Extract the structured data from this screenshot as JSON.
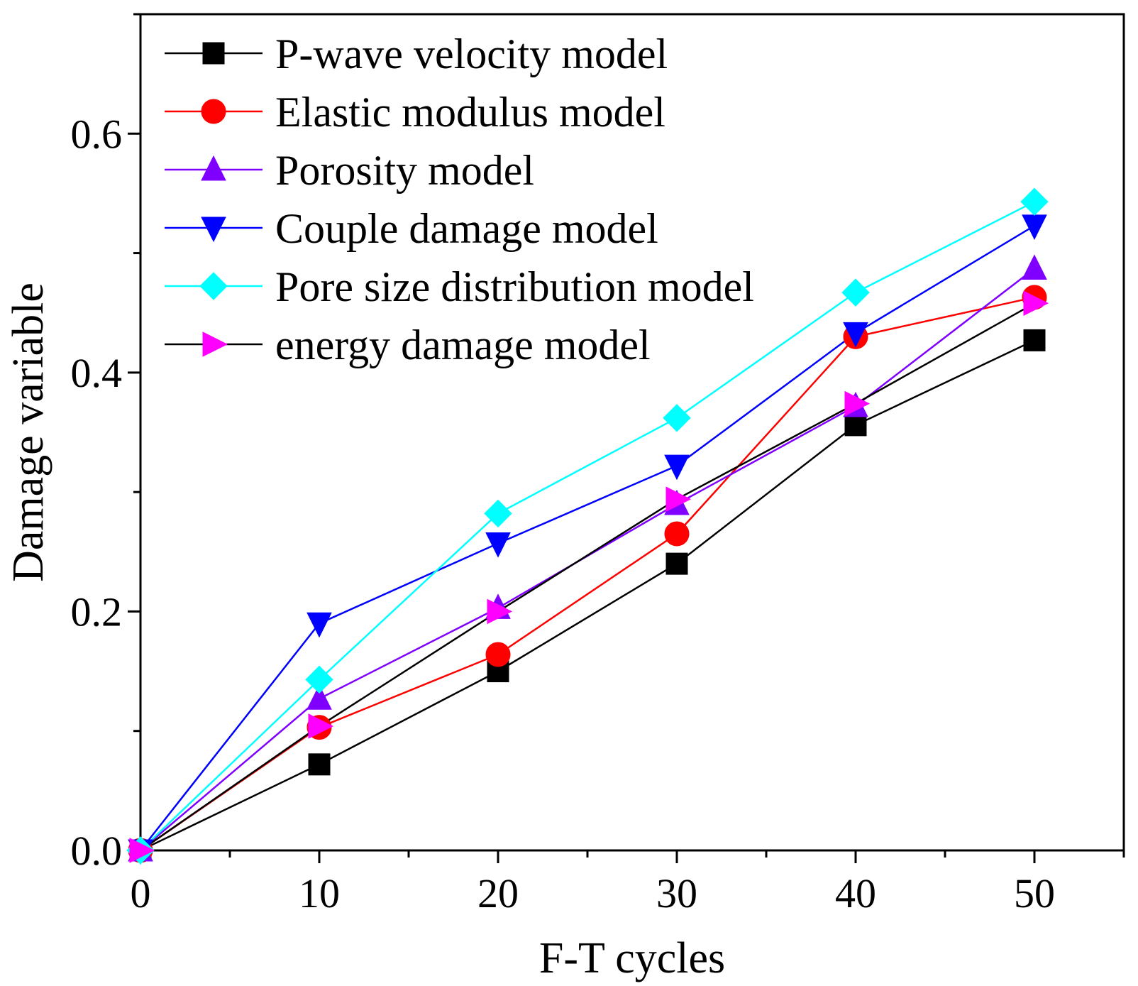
{
  "chart_data": {
    "type": "line",
    "title": "",
    "xlabel": "F-T cycles",
    "ylabel": "Damage variable",
    "xlim": [
      0,
      55
    ],
    "ylim": [
      0,
      0.7
    ],
    "x_ticks": [
      "0",
      "10",
      "20",
      "30",
      "40",
      "50"
    ],
    "y_ticks": [
      "0.0",
      "0.2",
      "0.4",
      "0.6"
    ],
    "legend_position": "top-left",
    "grid": false,
    "x": [
      0,
      10,
      20,
      30,
      40,
      50
    ],
    "series": [
      {
        "name": "P-wave velocity model",
        "color": "#000000",
        "marker": "square",
        "values": [
          0,
          0.072,
          0.15,
          0.24,
          0.356,
          0.427
        ]
      },
      {
        "name": "Elastic modulus model",
        "color": "#ff0000",
        "marker": "circle",
        "values": [
          0,
          0.103,
          0.164,
          0.265,
          0.43,
          0.463
        ]
      },
      {
        "name": "Porosity model",
        "color": "#8000ff",
        "marker": "triangle-up",
        "values": [
          0,
          0.127,
          0.203,
          0.29,
          0.372,
          0.487
        ]
      },
      {
        "name": "Couple damage model",
        "color": "#0000ff",
        "marker": "triangle-down",
        "values": [
          0,
          0.19,
          0.257,
          0.322,
          0.433,
          0.523
        ]
      },
      {
        "name": "Pore size distribution model",
        "color": "#00ffff",
        "marker": "diamond",
        "values": [
          0,
          0.143,
          0.282,
          0.362,
          0.467,
          0.543
        ]
      },
      {
        "name": "energy damage model",
        "color": "#ff00ff",
        "line_color": "#000000",
        "marker": "triangle-right",
        "values": [
          0,
          0.104,
          0.2,
          0.294,
          0.374,
          0.458
        ]
      }
    ]
  }
}
